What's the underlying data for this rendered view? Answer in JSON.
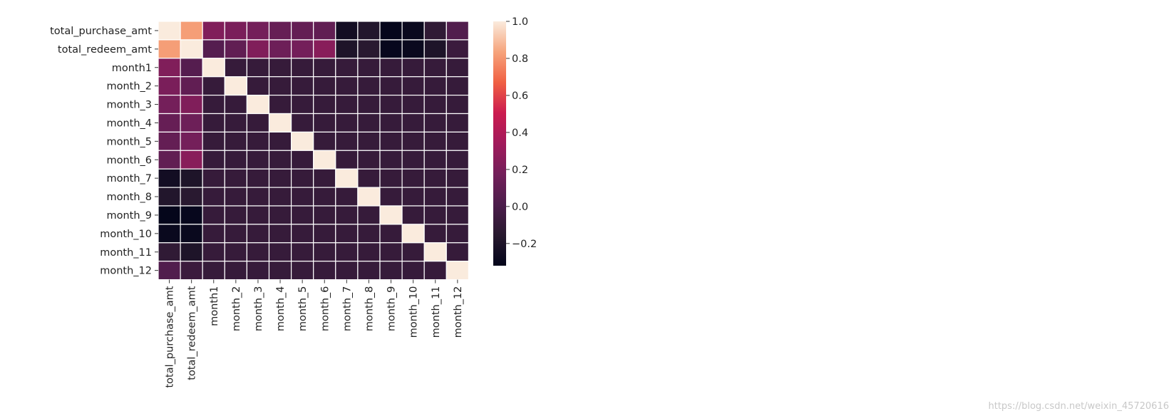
{
  "chart_data": {
    "type": "heatmap",
    "title": "",
    "xlabel": "",
    "ylabel": "",
    "row_labels": [
      "total_purchase_amt",
      "total_redeem_amt",
      "month1",
      "month_2",
      "month_3",
      "month_4",
      "month_5",
      "month_6",
      "month_7",
      "month_8",
      "month_9",
      "month_10",
      "month_11",
      "month_12"
    ],
    "col_labels": [
      "total_purchase_amt",
      "total_redeem_amt",
      "month1",
      "month_2",
      "month_3",
      "month_4",
      "month_5",
      "month_6",
      "month_7",
      "month_8",
      "month_9",
      "month_10",
      "month_11",
      "month_12"
    ],
    "values": [
      [
        1.0,
        0.82,
        0.22,
        0.2,
        0.18,
        0.12,
        0.11,
        0.1,
        -0.25,
        -0.18,
        -0.31,
        -0.29,
        -0.12,
        0.03
      ],
      [
        0.82,
        1.0,
        0.05,
        0.1,
        0.22,
        0.15,
        0.18,
        0.25,
        -0.2,
        -0.15,
        -0.3,
        -0.29,
        -0.2,
        -0.07
      ],
      [
        0.22,
        0.05,
        1.0,
        -0.09,
        -0.09,
        -0.09,
        -0.09,
        -0.09,
        -0.09,
        -0.09,
        -0.09,
        -0.09,
        -0.09,
        -0.09
      ],
      [
        0.2,
        0.1,
        -0.09,
        1.0,
        -0.09,
        -0.09,
        -0.09,
        -0.09,
        -0.09,
        -0.09,
        -0.09,
        -0.09,
        -0.09,
        -0.09
      ],
      [
        0.18,
        0.22,
        -0.09,
        -0.09,
        1.0,
        -0.09,
        -0.09,
        -0.09,
        -0.09,
        -0.09,
        -0.09,
        -0.09,
        -0.09,
        -0.09
      ],
      [
        0.12,
        0.15,
        -0.09,
        -0.09,
        -0.09,
        1.0,
        -0.09,
        -0.09,
        -0.09,
        -0.09,
        -0.09,
        -0.09,
        -0.09,
        -0.09
      ],
      [
        0.11,
        0.18,
        -0.09,
        -0.09,
        -0.09,
        -0.09,
        1.0,
        -0.09,
        -0.09,
        -0.09,
        -0.09,
        -0.09,
        -0.09,
        -0.09
      ],
      [
        0.1,
        0.25,
        -0.09,
        -0.09,
        -0.09,
        -0.09,
        -0.09,
        1.0,
        -0.09,
        -0.09,
        -0.09,
        -0.09,
        -0.09,
        -0.09
      ],
      [
        -0.25,
        -0.2,
        -0.09,
        -0.09,
        -0.09,
        -0.09,
        -0.09,
        -0.09,
        1.0,
        -0.09,
        -0.09,
        -0.09,
        -0.09,
        -0.09
      ],
      [
        -0.18,
        -0.15,
        -0.09,
        -0.09,
        -0.09,
        -0.09,
        -0.09,
        -0.09,
        -0.09,
        1.0,
        -0.09,
        -0.09,
        -0.09,
        -0.09
      ],
      [
        -0.31,
        -0.3,
        -0.09,
        -0.09,
        -0.09,
        -0.09,
        -0.09,
        -0.09,
        -0.09,
        -0.09,
        1.0,
        -0.09,
        -0.09,
        -0.09
      ],
      [
        -0.29,
        -0.29,
        -0.09,
        -0.09,
        -0.09,
        -0.09,
        -0.09,
        -0.09,
        -0.09,
        -0.09,
        -0.09,
        1.0,
        -0.09,
        -0.09
      ],
      [
        -0.12,
        -0.2,
        -0.09,
        -0.09,
        -0.09,
        -0.09,
        -0.09,
        -0.09,
        -0.09,
        -0.09,
        -0.09,
        -0.09,
        1.0,
        -0.09
      ],
      [
        0.03,
        -0.07,
        -0.09,
        -0.09,
        -0.09,
        -0.09,
        -0.09,
        -0.09,
        -0.09,
        -0.09,
        -0.09,
        -0.09,
        -0.09,
        1.0
      ]
    ],
    "colorbar": {
      "vmin": -0.32,
      "vmax": 1.0,
      "ticks": [
        1.0,
        0.8,
        0.6,
        0.4,
        0.2,
        0.0,
        -0.2
      ],
      "tick_labels": [
        "1.0",
        "0.8",
        "0.6",
        "0.4",
        "0.2",
        "0.0",
        "−0.2"
      ]
    },
    "colormap": "rocket",
    "grid": "white cell borders"
  },
  "watermark": "https://blog.csdn.net/weixin_45720616"
}
